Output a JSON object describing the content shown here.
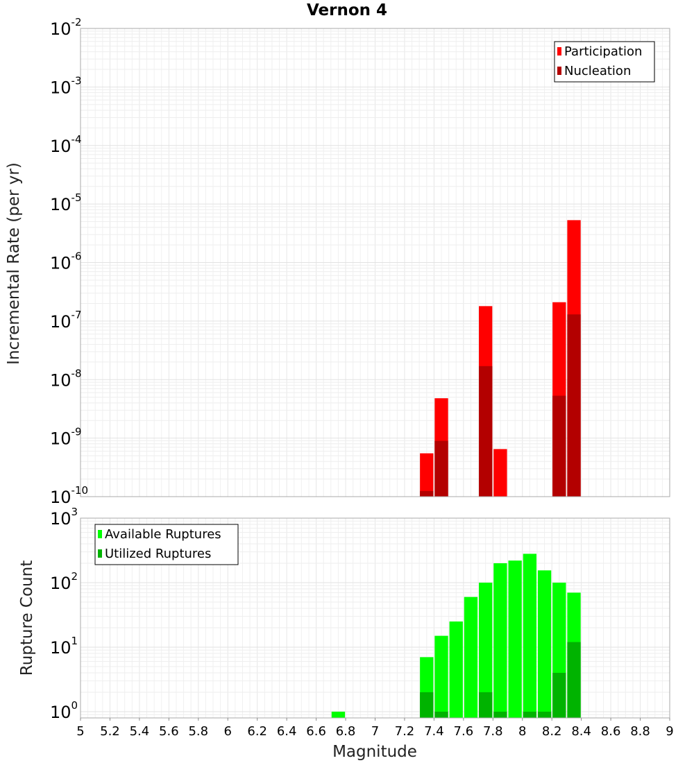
{
  "chart_data": [
    {
      "type": "bar",
      "title": "Vernon 4",
      "xlabel": "",
      "ylabel": "Incremental Rate (per yr)",
      "yscale": "log",
      "ylim": [
        1e-10,
        0.01
      ],
      "xlim": [
        5,
        9
      ],
      "ytick_labels": [
        {
          "base": "10",
          "exp": "-2"
        },
        {
          "base": "10",
          "exp": "-3"
        },
        {
          "base": "10",
          "exp": "-4"
        },
        {
          "base": "10",
          "exp": "-5"
        },
        {
          "base": "10",
          "exp": "-6"
        },
        {
          "base": "10",
          "exp": "-7"
        },
        {
          "base": "10",
          "exp": "-8"
        },
        {
          "base": "10",
          "exp": "-9"
        },
        {
          "base": "10",
          "exp": "-10"
        }
      ],
      "grid": true,
      "legend": "top-right",
      "series": [
        {
          "name": "Participation",
          "color": "#ff0000",
          "points": [
            {
              "x": 7.35,
              "y": 5.5e-10
            },
            {
              "x": 7.45,
              "y": 4.8e-09
            },
            {
              "x": 7.75,
              "y": 1.8e-07
            },
            {
              "x": 7.85,
              "y": 6.5e-10
            },
            {
              "x": 8.25,
              "y": 2.1e-07
            },
            {
              "x": 8.35,
              "y": 5.3e-06
            }
          ]
        },
        {
          "name": "Nucleation",
          "color": "#b30000",
          "points": [
            {
              "x": 7.35,
              "y": 1.25e-10
            },
            {
              "x": 7.45,
              "y": 9e-10
            },
            {
              "x": 7.75,
              "y": 1.7e-08
            },
            {
              "x": 8.25,
              "y": 5.3e-09
            },
            {
              "x": 8.35,
              "y": 1.3e-07
            }
          ]
        }
      ]
    },
    {
      "type": "bar",
      "title": "",
      "xlabel": "Magnitude",
      "ylabel": "Rupture Count",
      "yscale": "log",
      "ylim": [
        0.8,
        1000
      ],
      "xlim": [
        5,
        9
      ],
      "xtick_labels": [
        "5",
        "5.2",
        "5.4",
        "5.6",
        "5.8",
        "6",
        "6.2",
        "6.4",
        "6.6",
        "6.8",
        "7",
        "7.2",
        "7.4",
        "7.6",
        "7.8",
        "8",
        "8.2",
        "8.4",
        "8.6",
        "8.8",
        "9"
      ],
      "ytick_labels": [
        {
          "base": "10",
          "exp": "3"
        },
        {
          "base": "10",
          "exp": "2"
        },
        {
          "base": "10",
          "exp": "1"
        },
        {
          "base": "10",
          "exp": "0"
        }
      ],
      "grid": true,
      "legend": "top-left",
      "series": [
        {
          "name": "Available Ruptures",
          "color": "#00ff00",
          "points": [
            {
              "x": 6.75,
              "y": 1
            },
            {
              "x": 7.35,
              "y": 7
            },
            {
              "x": 7.45,
              "y": 15
            },
            {
              "x": 7.55,
              "y": 25
            },
            {
              "x": 7.65,
              "y": 60
            },
            {
              "x": 7.75,
              "y": 100
            },
            {
              "x": 7.85,
              "y": 200
            },
            {
              "x": 7.95,
              "y": 220
            },
            {
              "x": 8.05,
              "y": 280
            },
            {
              "x": 8.15,
              "y": 155
            },
            {
              "x": 8.25,
              "y": 100
            },
            {
              "x": 8.35,
              "y": 70
            }
          ]
        },
        {
          "name": "Utilized Ruptures",
          "color": "#00b300",
          "points": [
            {
              "x": 7.35,
              "y": 2
            },
            {
              "x": 7.45,
              "y": 1
            },
            {
              "x": 7.75,
              "y": 2
            },
            {
              "x": 7.85,
              "y": 1
            },
            {
              "x": 8.05,
              "y": 1
            },
            {
              "x": 8.15,
              "y": 1
            },
            {
              "x": 8.25,
              "y": 4
            },
            {
              "x": 8.35,
              "y": 12
            }
          ]
        }
      ]
    }
  ]
}
